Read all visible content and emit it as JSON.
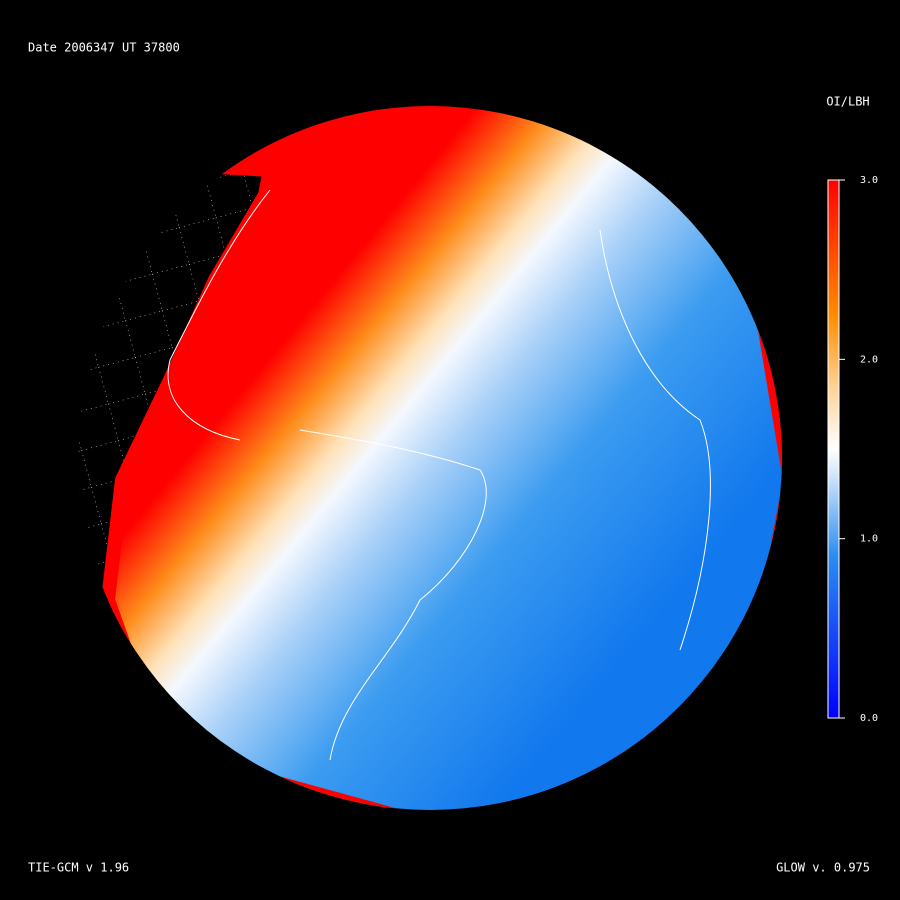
{
  "header": {
    "date": "Date 2006347",
    "ut": "UT 37800"
  },
  "colorbar": {
    "title": "OI/LBH",
    "lim": [
      0,
      3
    ],
    "ticks": [
      {
        "value": 0,
        "label": "0.0"
      },
      {
        "value": 1,
        "label": "1.0"
      },
      {
        "value": 2,
        "label": "2.0"
      },
      {
        "value": 3,
        "label": "3.0"
      }
    ]
  },
  "footer": {
    "left": "TIE-GCM v 1.96",
    "right": "GLOW v. 0.975"
  }
}
